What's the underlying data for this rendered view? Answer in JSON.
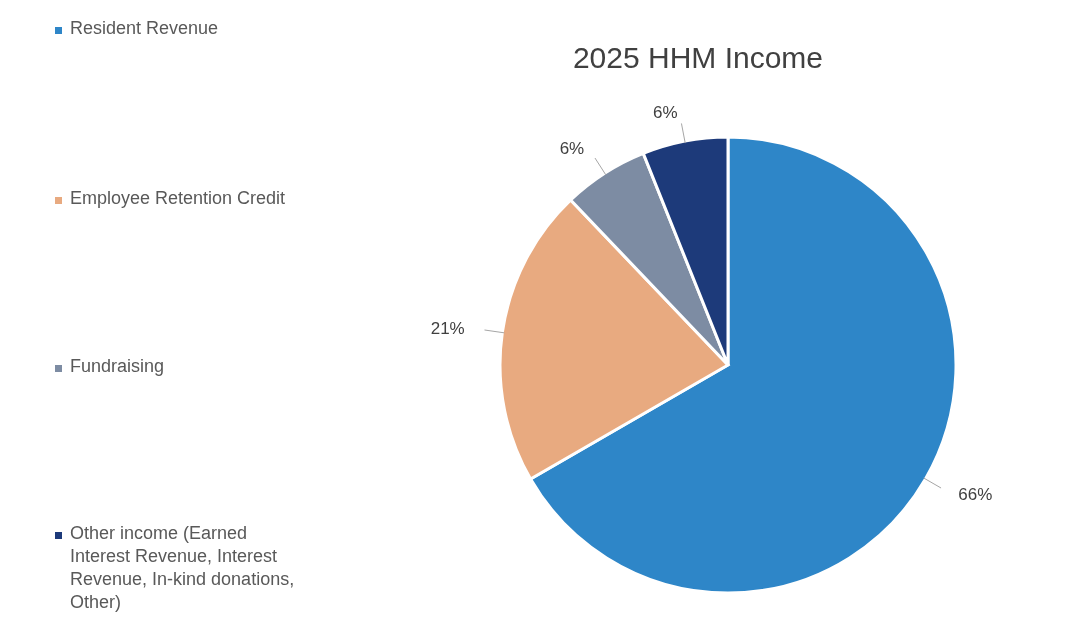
{
  "chart_data": {
    "type": "pie",
    "title": "2025 HHM Income",
    "categories": [
      "Resident Revenue",
      "Employee Retention Credit",
      "Fundraising",
      "Other income (Earned Interest Revenue, Interest Revenue, In-kind donations, Other)"
    ],
    "values": [
      66,
      21,
      6,
      6
    ],
    "colors": [
      "#2e86c8",
      "#e8aa80",
      "#7d8ca3",
      "#1d3a7a"
    ],
    "value_labels": [
      "66%",
      "21%",
      "6%",
      "6%"
    ],
    "legend": "left"
  }
}
